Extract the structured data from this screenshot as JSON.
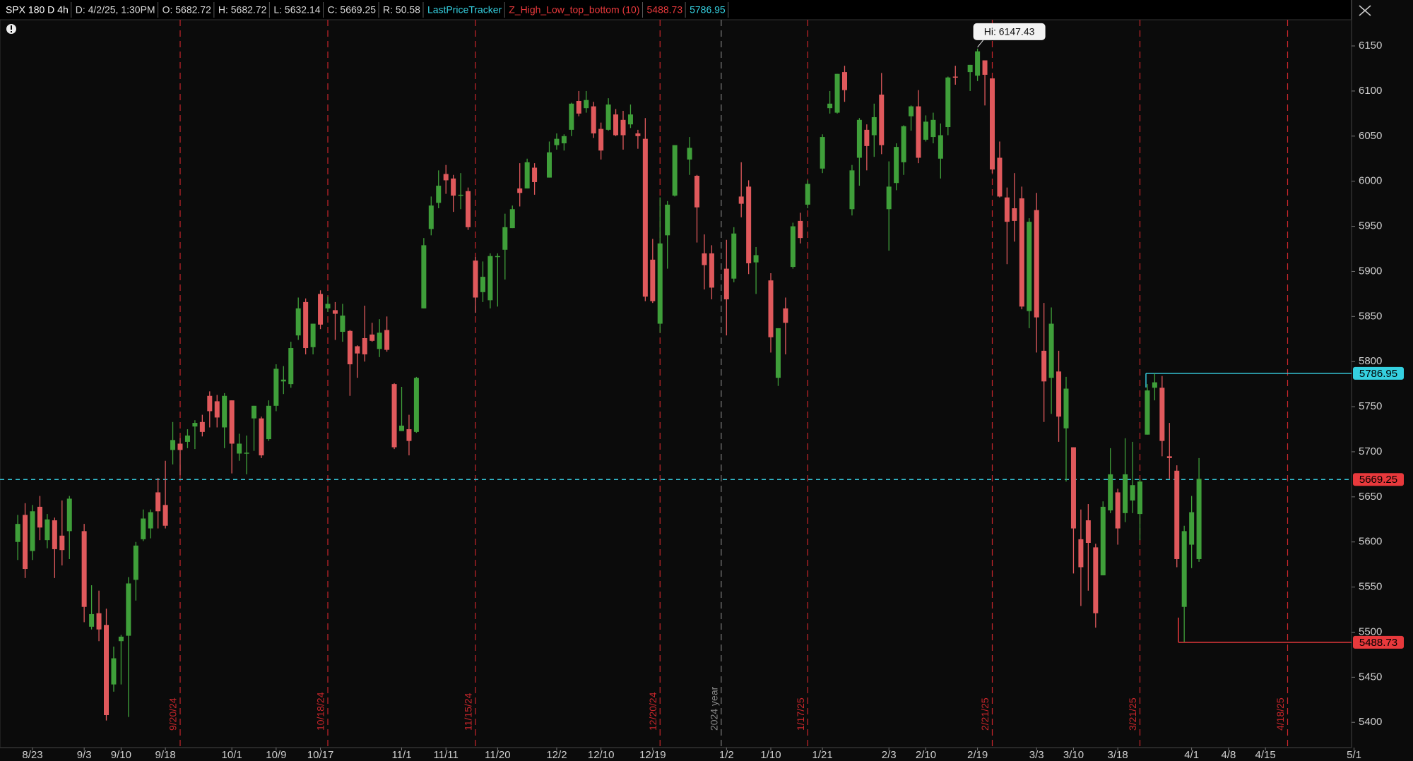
{
  "chart_data": {
    "type": "candlestick",
    "header_items": [
      {
        "text": "SPX 180 D 4h",
        "color": "#ffffff"
      },
      {
        "text": "D: 4/2/25, 1:30PM",
        "color": "#d8d8d8"
      },
      {
        "text": "O: 5682.72",
        "color": "#d8d8d8"
      },
      {
        "text": "H: 5682.72",
        "color": "#d8d8d8"
      },
      {
        "text": "L: 5632.14",
        "color": "#d8d8d8"
      },
      {
        "text": "C: 5669.25",
        "color": "#d8d8d8"
      },
      {
        "text": "R: 50.58",
        "color": "#d8d8d8"
      },
      {
        "text": "LastPriceTracker",
        "color": "#35d0e0"
      },
      {
        "text": "Z_High_Low_top_bottom (10)",
        "color": "#e8393c"
      },
      {
        "text": "5488.73",
        "color": "#e8393c"
      },
      {
        "text": "5786.95",
        "color": "#35d0e0"
      }
    ],
    "up_color": "#3f9f3a",
    "down_color": "#e0595c",
    "x": [
      "8/21",
      "8/22",
      "8/23",
      "8/26",
      "8/27",
      "8/28",
      "8/29",
      "8/30",
      "9/3",
      "9/4",
      "9/5",
      "9/6",
      "9/9",
      "9/10",
      "9/11",
      "9/12",
      "9/13",
      "9/16",
      "9/17",
      "9/18",
      "9/19",
      "9/20",
      "9/23",
      "9/24",
      "9/25",
      "9/26",
      "9/27",
      "9/30",
      "10/1",
      "10/2",
      "10/3",
      "10/4",
      "10/7",
      "10/8",
      "10/9",
      "10/10",
      "10/11",
      "10/14",
      "10/15",
      "10/16",
      "10/17",
      "10/18",
      "10/21",
      "10/22",
      "10/23",
      "10/24",
      "10/25",
      "10/28",
      "10/29",
      "10/30",
      "10/31",
      "11/1",
      "11/4",
      "11/5",
      "11/6",
      "11/7",
      "11/8",
      "11/11",
      "11/12",
      "11/13",
      "11/14",
      "11/15",
      "11/18",
      "11/19",
      "11/20",
      "11/21",
      "11/22",
      "11/25",
      "11/26",
      "11/27",
      "11/29",
      "12/2",
      "12/3",
      "12/4",
      "12/5",
      "12/6",
      "12/9",
      "12/10",
      "12/11",
      "12/12",
      "12/13",
      "12/16",
      "12/17",
      "12/18",
      "12/19",
      "12/20",
      "12/23",
      "12/24",
      "12/26",
      "12/27",
      "12/30",
      "12/31",
      "1/2",
      "1/3",
      "1/6",
      "1/7",
      "1/8",
      "1/10",
      "1/13",
      "1/14",
      "1/15",
      "1/16",
      "1/17",
      "1/21",
      "1/22",
      "1/23",
      "1/24",
      "1/27",
      "1/28",
      "1/29",
      "1/30",
      "1/31",
      "2/3",
      "2/4",
      "2/5",
      "2/6",
      "2/7",
      "2/10",
      "2/11",
      "2/12",
      "2/13",
      "2/14",
      "2/18",
      "2/19",
      "2/20",
      "2/21",
      "2/24",
      "2/25",
      "2/26",
      "2/27",
      "2/28",
      "3/3",
      "3/4",
      "3/5",
      "3/6",
      "3/7",
      "3/10",
      "3/11",
      "3/12",
      "3/13",
      "3/14",
      "3/17",
      "3/18",
      "3/19",
      "3/20",
      "3/21",
      "3/24",
      "3/25",
      "3/26",
      "3/27",
      "3/28",
      "3/31",
      "4/1",
      "4/2"
    ],
    "open": [
      5600,
      5630,
      5590,
      5639,
      5602,
      5624,
      5607,
      5612,
      5612,
      5506,
      5521,
      5508,
      5442,
      5490,
      5496,
      5558,
      5603,
      5615,
      5655,
      5641,
      5702,
      5709,
      5711,
      5728,
      5733,
      5762,
      5756,
      5727,
      5757,
      5698,
      5698,
      5737,
      5737,
      5714,
      5751,
      5778,
      5775,
      5829,
      5866,
      5816,
      5875,
      5859,
      5857,
      5833,
      5834,
      5817,
      5826,
      5830,
      5814,
      5835,
      5775,
      5723,
      5725,
      5722,
      5859,
      5947,
      5976,
      6008,
      6003,
      5985,
      5989,
      5912,
      5877,
      5868,
      5917,
      5924,
      5948,
      5992,
      5992,
      6015,
      6004,
      6040,
      6042,
      6057,
      6089,
      6081,
      6083,
      6058,
      6057,
      6074,
      6068,
      6063,
      6053,
      6047,
      5913,
      5842,
      5940,
      5984,
      6024,
      6006,
      5920,
      5920,
      5903,
      5892,
      5983,
      5994,
      5910,
      5890,
      5782,
      5859,
      5905,
      5956,
      5974,
      6014,
      6081,
      6076,
      6121,
      5969,
      6026,
      6057,
      6051,
      6096,
      5969,
      5998,
      6021,
      6072,
      6083,
      6046,
      6049,
      6025,
      6060,
      6116,
      6121,
      6117,
      6134,
      6114,
      6026,
      5982,
      5970,
      5981,
      5856,
      5968,
      5812,
      5782,
      5789,
      5726,
      5705,
      5603,
      5624,
      5594,
      5563,
      5635,
      5655,
      5632,
      5646,
      5631,
      5719,
      5771,
      5771,
      5695,
      5679,
      5528,
      5597,
      5581
    ],
    "high": [
      5630,
      5643,
      5641,
      5651,
      5631,
      5627,
      5646,
      5651,
      5620,
      5552,
      5546,
      5526,
      5484,
      5497,
      5561,
      5600,
      5636,
      5636,
      5671,
      5690,
      5733,
      5715,
      5725,
      5735,
      5741,
      5767,
      5763,
      5765,
      5757,
      5720,
      5718,
      5751,
      5739,
      5757,
      5797,
      5795,
      5822,
      5871,
      5870,
      5842,
      5879,
      5872,
      5866,
      5864,
      5835,
      5818,
      5862,
      5843,
      5847,
      5850,
      5776,
      5772,
      5741,
      5783,
      5937,
      5983,
      6012,
      6018,
      6007,
      6009,
      5993,
      5916,
      5911,
      5920,
      5920,
      5964,
      5973,
      6020,
      6025,
      6020,
      6044,
      6053,
      6052,
      6087,
      6100,
      6100,
      6088,
      6065,
      6092,
      6080,
      6078,
      6085,
      6057,
      6070,
      5936,
      5982,
      5978,
      6040,
      6049,
      6007,
      5941,
      5929,
      5935,
      5949,
      6021,
      6001,
      5927,
      5898,
      5837,
      5871,
      5954,
      5965,
      6001,
      6052,
      6100,
      6119,
      6128,
      6018,
      6070,
      6063,
      6086,
      6120,
      6022,
      6042,
      6062,
      6084,
      6101,
      6073,
      6076,
      6064,
      6116,
      6128,
      6129,
      6147,
      6134,
      6114,
      6044,
      5993,
      6009,
      5994,
      5959,
      5987,
      5865,
      5860,
      5812,
      5783,
      5705,
      5636,
      5642,
      5598,
      5645,
      5704,
      5659,
      5715,
      5711,
      5670,
      5775,
      5787,
      5784,
      5732,
      5685,
      5618,
      5651,
      5693
    ],
    "low": [
      5580,
      5560,
      5580,
      5602,
      5593,
      5560,
      5574,
      5581,
      5511,
      5503,
      5490,
      5402,
      5434,
      5442,
      5406,
      5535,
      5601,
      5604,
      5615,
      5615,
      5686,
      5674,
      5704,
      5703,
      5717,
      5727,
      5727,
      5704,
      5676,
      5690,
      5675,
      5701,
      5693,
      5712,
      5745,
      5764,
      5771,
      5824,
      5808,
      5808,
      5836,
      5855,
      5824,
      5822,
      5762,
      5782,
      5800,
      5822,
      5805,
      5811,
      5703,
      5723,
      5696,
      5721,
      5859,
      5940,
      5970,
      5986,
      5966,
      5969,
      5946,
      5854,
      5866,
      5859,
      5861,
      5891,
      5948,
      5972,
      5992,
      5985,
      6004,
      6035,
      6034,
      6050,
      6072,
      6076,
      6048,
      6024,
      6056,
      6050,
      6035,
      6059,
      6036,
      5867,
      5865,
      5832,
      5903,
      5983,
      6007,
      5932,
      5880,
      5869,
      5829,
      5888,
      5960,
      5897,
      5875,
      5810,
      5773,
      5808,
      5903,
      5931,
      5970,
      6009,
      6075,
      6075,
      6088,
      5962,
      5995,
      6012,
      6027,
      6030,
      5923,
      5990,
      6007,
      6056,
      6020,
      6044,
      6042,
      6003,
      6051,
      6107,
      6100,
      6111,
      6084,
      6009,
      5982,
      5908,
      5933,
      5858,
      5837,
      5810,
      5733,
      5742,
      5711,
      5667,
      5565,
      5529,
      5546,
      5505,
      5563,
      5632,
      5597,
      5622,
      5632,
      5602,
      5719,
      5757,
      5695,
      5670,
      5572,
      5489,
      5571,
      5578
    ],
    "close": [
      5620,
      5570,
      5634,
      5616,
      5625,
      5592,
      5591,
      5648,
      5528,
      5520,
      5503,
      5408,
      5471,
      5495,
      5554,
      5596,
      5626,
      5633,
      5634,
      5618,
      5713,
      5702,
      5718,
      5732,
      5722,
      5745,
      5738,
      5762,
      5709,
      5709,
      5699,
      5751,
      5696,
      5751,
      5792,
      5780,
      5815,
      5859,
      5815,
      5842,
      5841,
      5864,
      5853,
      5851,
      5797,
      5809,
      5808,
      5823,
      5832,
      5813,
      5705,
      5729,
      5712,
      5782,
      5929,
      5973,
      5995,
      6001,
      5984,
      5985,
      5949,
      5871,
      5894,
      5917,
      5917,
      5949,
      5969,
      5987,
      6021,
      5999,
      6032,
      6047,
      6050,
      6086,
      6075,
      6090,
      6053,
      6034,
      6085,
      6051,
      6051,
      6074,
      6050,
      5872,
      5867,
      5931,
      5974,
      6040,
      6037,
      5971,
      5907,
      5882,
      5869,
      5942,
      5975,
      5909,
      5918,
      5827,
      5837,
      5843,
      5950,
      5937,
      5997,
      6049,
      6086,
      6119,
      6101,
      6012,
      6068,
      6039,
      6071,
      6040,
      5994,
      6038,
      6061,
      6083,
      6026,
      6066,
      6068,
      6051,
      6115,
      6115,
      6129,
      6144,
      6118,
      6013,
      5983,
      5955,
      5956,
      5861,
      5955,
      5849,
      5778,
      5842,
      5739,
      5770,
      5615,
      5572,
      5599,
      5521,
      5639,
      5675,
      5615,
      5675,
      5663,
      5667,
      5768,
      5777,
      5712,
      5693,
      5581,
      5612,
      5633,
      5670
    ],
    "xticks": [
      "8/23",
      "9/3",
      "9/10",
      "9/18",
      "10/1",
      "10/9",
      "10/17",
      "11/1",
      "11/11",
      "11/20",
      "12/2",
      "12/10",
      "12/19",
      "1/2",
      "1/10",
      "1/21",
      "2/3",
      "2/10",
      "2/19",
      "3/3",
      "3/10",
      "3/18",
      "4/1",
      "4/8",
      "4/15",
      "5/1"
    ],
    "ylim": [
      5372,
      6179
    ],
    "yticks": [
      5400,
      5450,
      5500,
      5550,
      5600,
      5650,
      5700,
      5750,
      5800,
      5850,
      5900,
      5950,
      6000,
      6050,
      6100,
      6150
    ],
    "expiry_lines": [
      "9/20/24",
      "10/18/24",
      "11/15/24",
      "12/20/24",
      "1/17/25",
      "2/21/25",
      "3/21/25",
      "4/18/25"
    ],
    "expiry_color": "#c8262b",
    "year_label": "2024 year",
    "annotation": "Hi: 6147.43",
    "price_lines": [
      {
        "value": 5786.95,
        "line_color": "#35c6d8",
        "label_color": "#35d0e0",
        "dashed": false
      },
      {
        "value": 5669.25,
        "line_color": "#35c6d8",
        "label_color": "#e8393c",
        "dashed": true
      },
      {
        "value": 5488.73,
        "line_color": "#e8393c",
        "label_color": "#e8393c",
        "dashed": false
      }
    ]
  }
}
